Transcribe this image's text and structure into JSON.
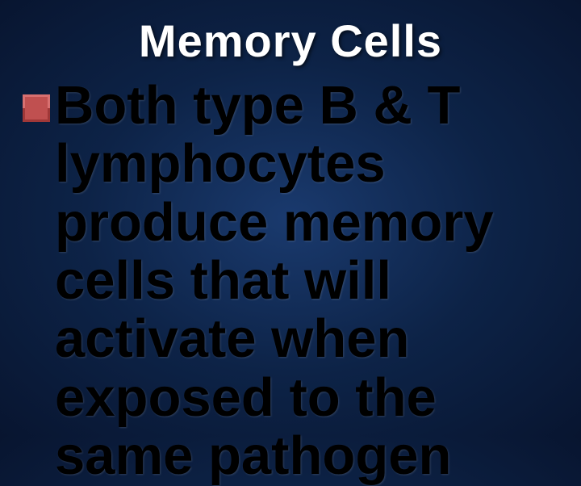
{
  "slide": {
    "title": "Memory Cells",
    "bullet_text": "Both type B & T lymphocytes produce memory cells that will activate when exposed to the same pathogen",
    "title_fontsize": 56,
    "body_fontsize": 67,
    "bullet_color": "#c05050",
    "bullet_size": 34,
    "title_color": "#ffffff",
    "body_color": "#000000",
    "background_gradient": [
      "#1a3a6e",
      "#0d2347",
      "#081530"
    ]
  }
}
